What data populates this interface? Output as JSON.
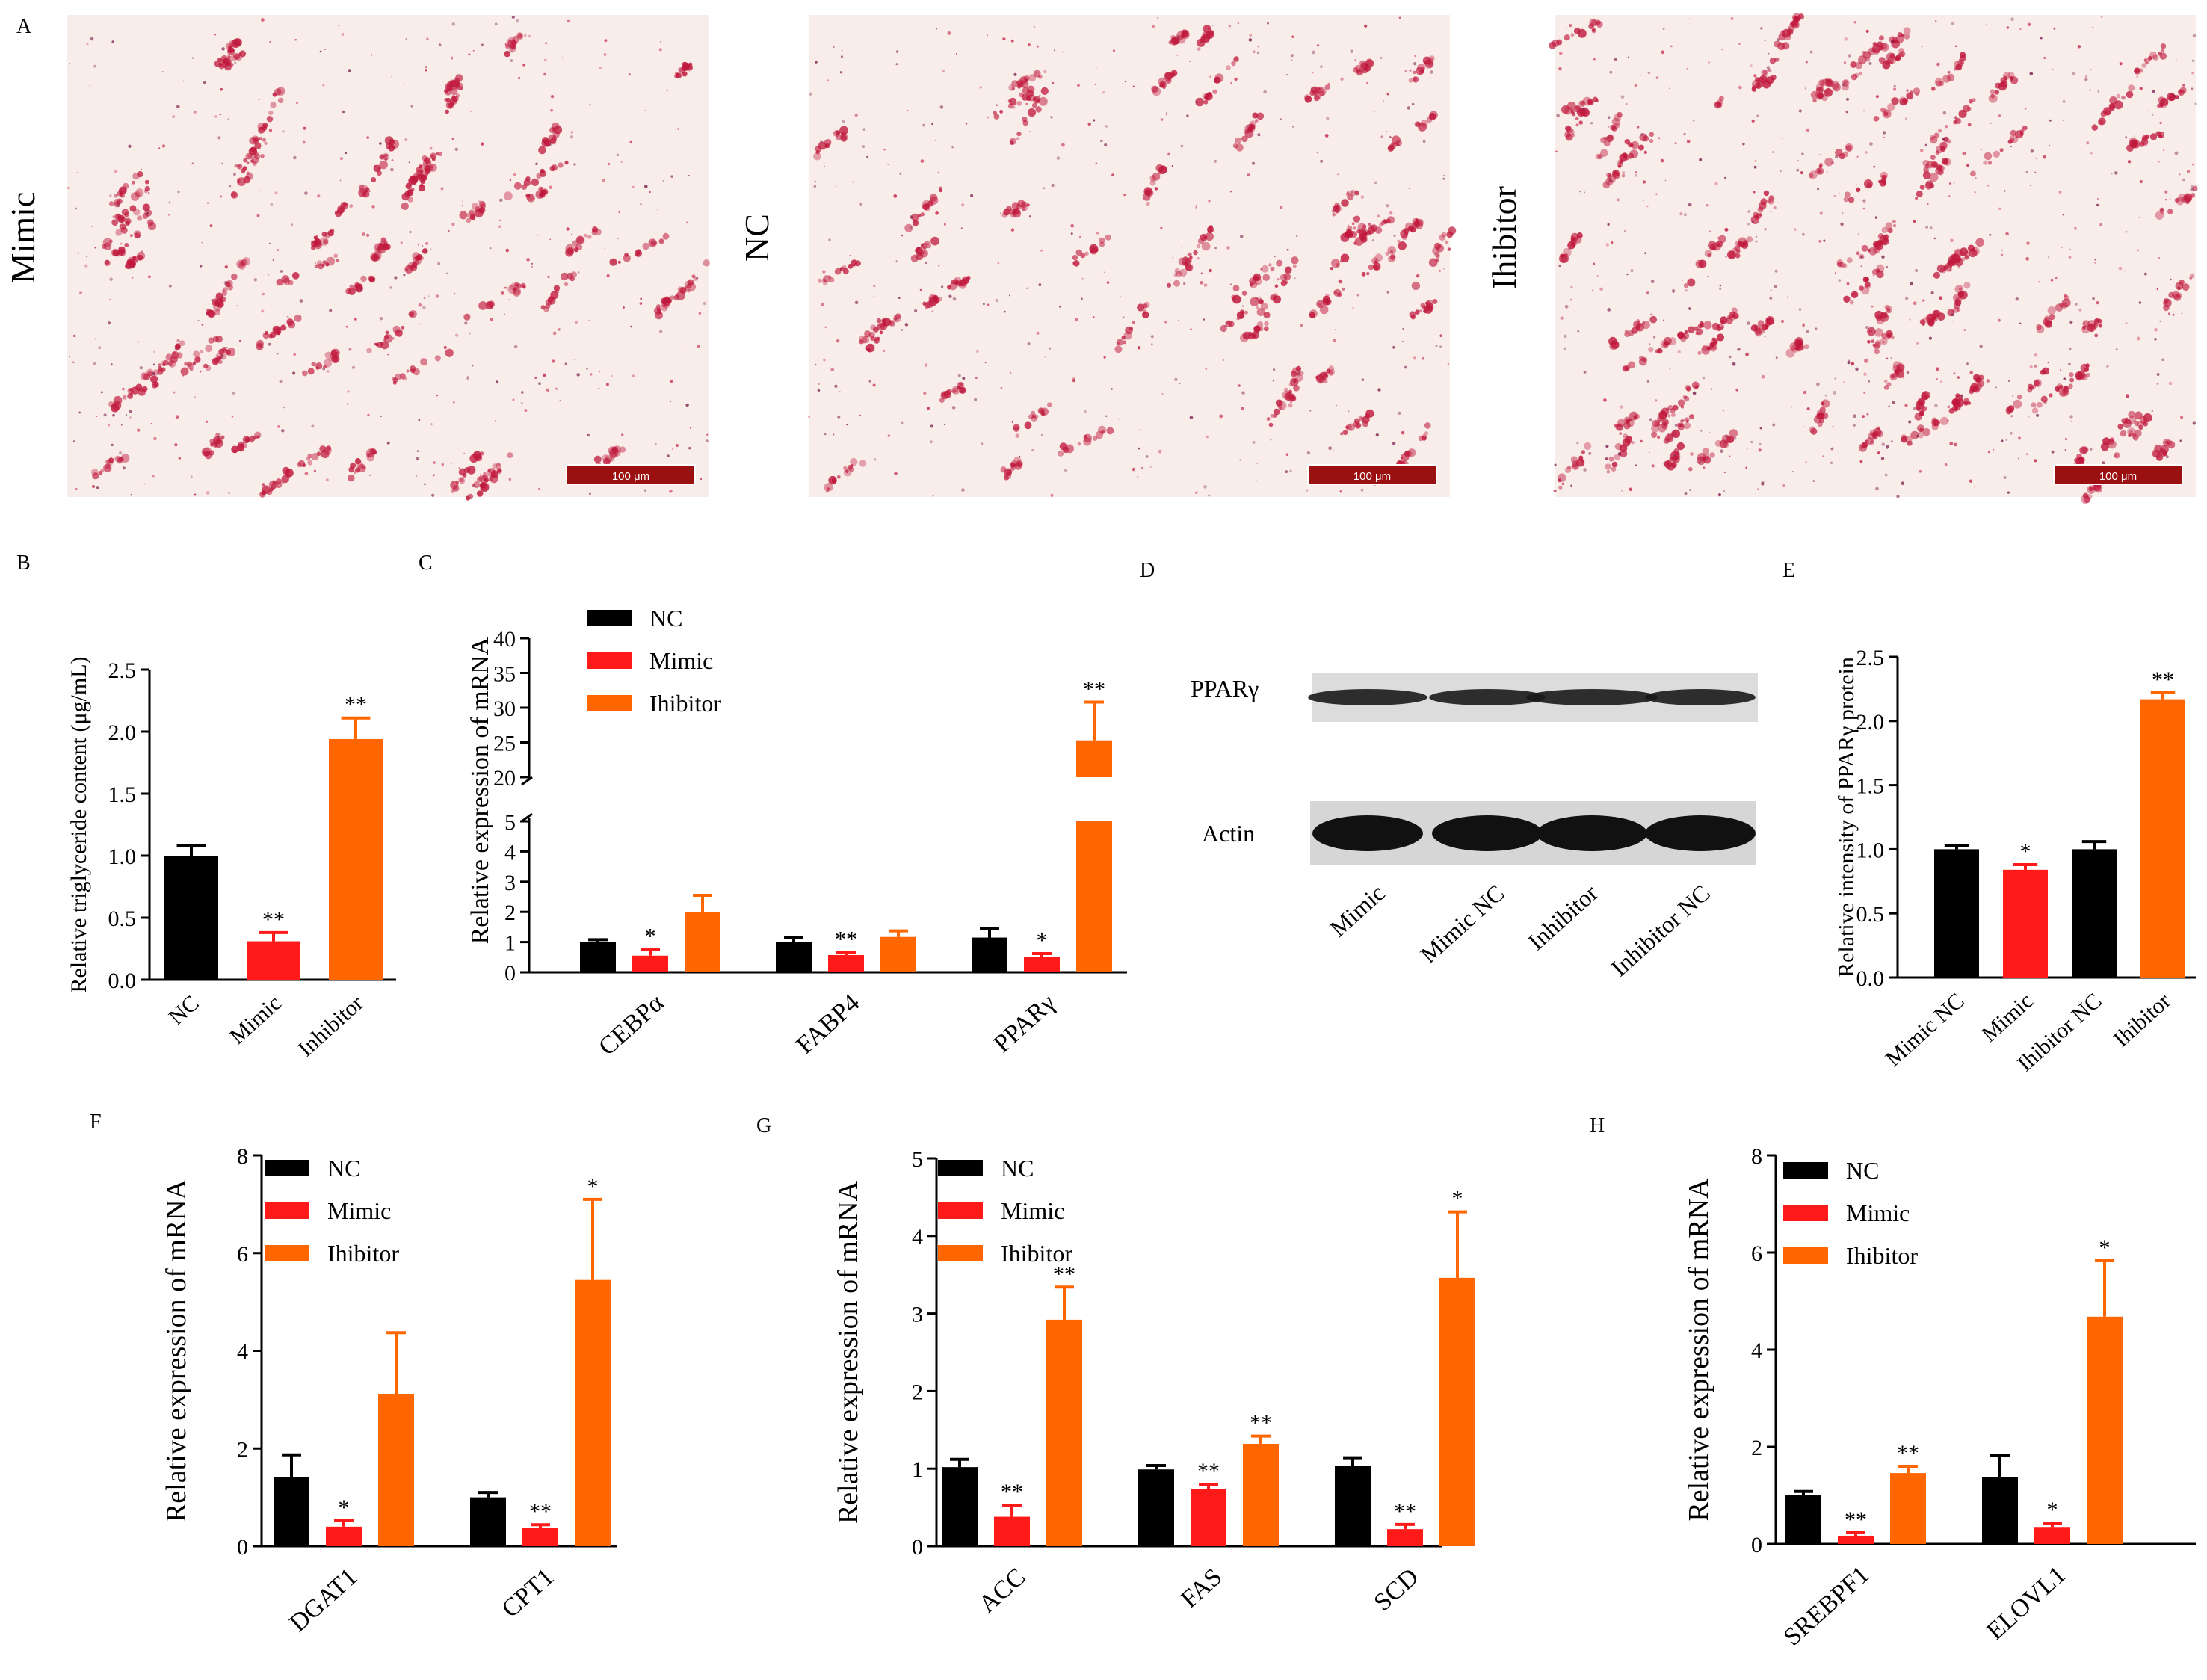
{
  "panel_letters": {
    "A": "A",
    "B": "B",
    "C": "C",
    "D": "D",
    "E": "E",
    "F": "F",
    "G": "G",
    "H": "H"
  },
  "micrographs": [
    {
      "label": "Mimic",
      "scale_bar": "100 μm"
    },
    {
      "label": "NC",
      "scale_bar": "100 μm"
    },
    {
      "label": "Ihibitor",
      "scale_bar": "100 μm"
    }
  ],
  "colors": {
    "NC": "#000000",
    "Mimic": "#ff1a1a",
    "Inhibitor": "#ff6600",
    "stain": "#c0183c",
    "tissue_bg": "#f8ede9"
  },
  "western_blot": {
    "rows": [
      "PPARγ",
      "Actin"
    ],
    "lanes": [
      "Mimic",
      "Mimic NC",
      "Inhibitor",
      "Inhibitor NC"
    ]
  },
  "chart_data": [
    {
      "panel": "B",
      "type": "bar",
      "ylabel": "Relative triglyceride  content (μg/mL)",
      "ylim": [
        0,
        2.5
      ],
      "yticks": [
        "0.0",
        "0.5",
        "1.0",
        "1.5",
        "2.0",
        "2.5"
      ],
      "categories": [
        "NC",
        "Mimic",
        "Inhibitor"
      ],
      "values": [
        1.0,
        0.31,
        1.94
      ],
      "errors": [
        0.08,
        0.07,
        0.17
      ],
      "bar_colors": [
        "NC",
        "Mimic",
        "Inhibitor"
      ],
      "significance": [
        "",
        "**",
        "**"
      ]
    },
    {
      "panel": "C",
      "type": "bar",
      "axis_break": [
        5,
        20
      ],
      "ylabel": "Relative expression of  mRNA",
      "yticks_lower": [
        "0",
        "1",
        "2",
        "3",
        "4",
        "5"
      ],
      "yticks_upper": [
        "20",
        "25",
        "30",
        "35",
        "40"
      ],
      "legend": [
        "NC",
        "Mimic",
        "Ihibitor"
      ],
      "categories": [
        "CEBPα",
        "FABP4",
        "PPARγ"
      ],
      "series": [
        {
          "name": "NC",
          "values": [
            1.0,
            1.0,
            1.15
          ],
          "errors": [
            0.08,
            0.15,
            0.3
          ],
          "significance": [
            "",
            "",
            ""
          ]
        },
        {
          "name": "Mimic",
          "values": [
            0.55,
            0.57,
            0.5
          ],
          "errors": [
            0.2,
            0.08,
            0.12
          ],
          "significance": [
            "*",
            "**",
            "*"
          ]
        },
        {
          "name": "Ihibitor",
          "values": [
            2.0,
            1.17,
            25.3
          ],
          "errors": [
            0.55,
            0.2,
            5.5
          ],
          "significance": [
            "",
            "",
            "**"
          ]
        }
      ]
    },
    {
      "panel": "E",
      "type": "bar",
      "ylabel": "Relative intensity of  PPARγ protein",
      "ylim": [
        0,
        2.5
      ],
      "yticks": [
        "0.0",
        "0.5",
        "1.0",
        "1.5",
        "2.0",
        "2.5"
      ],
      "categories": [
        "Mimic NC",
        "Mimic",
        "Ihibitor NC",
        "Ihibitor"
      ],
      "values": [
        1.0,
        0.84,
        1.0,
        2.17
      ],
      "errors": [
        0.03,
        0.04,
        0.06,
        0.05
      ],
      "bar_colors": [
        "NC",
        "Mimic",
        "NC",
        "Inhibitor"
      ],
      "significance": [
        "",
        "*",
        "",
        "**"
      ]
    },
    {
      "panel": "F",
      "type": "bar",
      "ylabel": "Relative expression of  mRNA",
      "ylim": [
        0,
        8
      ],
      "yticks": [
        "0",
        "2",
        "4",
        "6",
        "8"
      ],
      "legend": [
        "NC",
        "Mimic",
        "Ihibitor"
      ],
      "categories": [
        "DGAT1",
        "CPT1"
      ],
      "series": [
        {
          "name": "NC",
          "values": [
            1.42,
            1.0
          ],
          "errors": [
            0.45,
            0.1
          ],
          "significance": [
            "",
            ""
          ]
        },
        {
          "name": "Mimic",
          "values": [
            0.4,
            0.37
          ],
          "errors": [
            0.12,
            0.07
          ],
          "significance": [
            "*",
            "**"
          ]
        },
        {
          "name": "Ihibitor",
          "values": [
            3.12,
            5.45
          ],
          "errors": [
            1.25,
            1.65
          ],
          "significance": [
            "",
            "*"
          ]
        }
      ]
    },
    {
      "panel": "G",
      "type": "bar",
      "ylabel": "Relative expression of  mRNA",
      "ylim": [
        0,
        5
      ],
      "yticks": [
        "0",
        "1",
        "2",
        "3",
        "4",
        "5"
      ],
      "legend": [
        "NC",
        "Mimic",
        "Ihibitor"
      ],
      "categories": [
        "ACC",
        "FAS",
        "SCD"
      ],
      "series": [
        {
          "name": "NC",
          "values": [
            1.02,
            0.99,
            1.04
          ],
          "errors": [
            0.1,
            0.05,
            0.1
          ],
          "significance": [
            "",
            "",
            ""
          ]
        },
        {
          "name": "Mimic",
          "values": [
            0.38,
            0.74,
            0.22
          ],
          "errors": [
            0.15,
            0.06,
            0.06
          ],
          "significance": [
            "**",
            "**",
            "**"
          ]
        },
        {
          "name": "Ihibitor",
          "values": [
            2.92,
            1.32,
            3.46
          ],
          "errors": [
            0.42,
            0.1,
            0.85
          ],
          "significance": [
            "**",
            "**",
            "*"
          ]
        }
      ]
    },
    {
      "panel": "H",
      "type": "bar",
      "ylabel": "Relative expression of  mRNA",
      "ylim": [
        0,
        8
      ],
      "yticks": [
        "0",
        "2",
        "4",
        "6",
        "8"
      ],
      "legend": [
        "NC",
        "Mimic",
        "Ihibitor"
      ],
      "categories": [
        "SREBPF1",
        "ELOVL1"
      ],
      "series": [
        {
          "name": "NC",
          "values": [
            1.0,
            1.38
          ],
          "errors": [
            0.08,
            0.45
          ],
          "significance": [
            "",
            ""
          ]
        },
        {
          "name": "Mimic",
          "values": [
            0.17,
            0.35
          ],
          "errors": [
            0.06,
            0.08
          ],
          "significance": [
            "**",
            "*"
          ]
        },
        {
          "name": "Ihibitor",
          "values": [
            1.46,
            4.68
          ],
          "errors": [
            0.14,
            1.15
          ],
          "significance": [
            "**",
            "*"
          ]
        }
      ]
    }
  ]
}
